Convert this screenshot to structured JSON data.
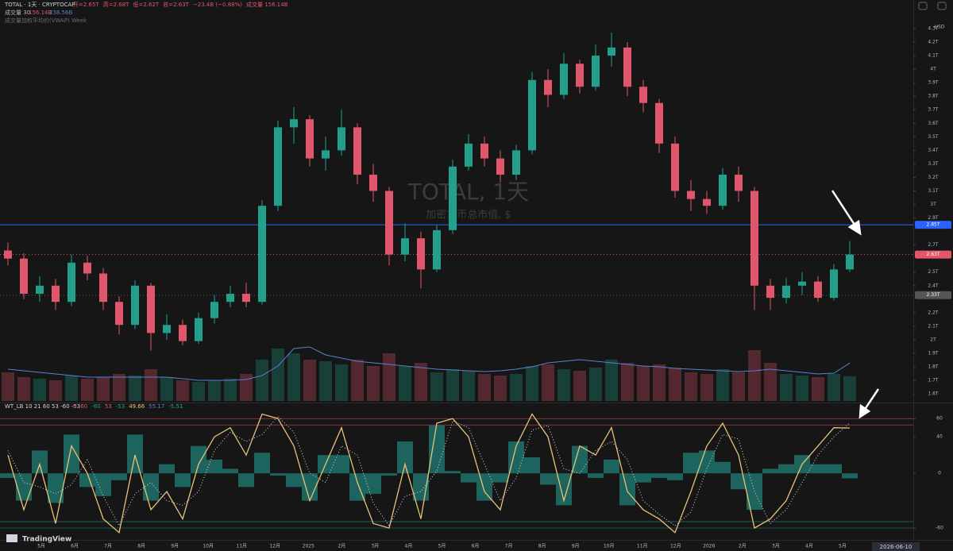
{
  "header": {
    "symbol": "TOTAL · 1天 · CRYPTOCAP",
    "ohlc": [
      "开=2.65T",
      "高=2.68T",
      "低=2.62T",
      "收=2.63T",
      "−23.4B (−0.88%)",
      "成交量 156.14B"
    ],
    "volume_legend": [
      "成交量 30",
      "156.14B",
      "238.56B"
    ],
    "vwap": "成交量加权平均价(VWAP) Week",
    "currency": "USD"
  },
  "watermark": {
    "title": "TOTAL, 1天",
    "subtitle": "加密货币总市值, $"
  },
  "time_axis": {
    "labels": [
      "5月",
      "6月",
      "7月",
      "8月",
      "9月",
      "10月",
      "11月",
      "12月",
      "2025",
      "2月",
      "3月",
      "4月",
      "5月",
      "6月",
      "7月",
      "8月",
      "9月",
      "10月",
      "11月",
      "12月",
      "2026",
      "2月",
      "3月",
      "4月",
      "5月"
    ],
    "cursor_date": "2026-06-10"
  },
  "brand": "TradingView",
  "chart_data": [
    {
      "type": "candlestick",
      "up_color": "#22a08b",
      "down_color": "#e0566a",
      "open": [
        2.66,
        2.6,
        2.34,
        2.4,
        2.28,
        2.57,
        2.49,
        2.28,
        2.11,
        2.4,
        2.05,
        2.11,
        1.99,
        2.16,
        2.28,
        2.34,
        2.28,
        2.99,
        3.57,
        3.63,
        3.34,
        3.4,
        3.57,
        3.22,
        3.1,
        2.63,
        2.75,
        2.52,
        2.81,
        3.28,
        3.45,
        3.34,
        3.22,
        3.4,
        3.92,
        3.81,
        4.04,
        3.87,
        4.1,
        4.16,
        3.87,
        3.75,
        3.45,
        3.1,
        3.04,
        2.99,
        3.22,
        3.1,
        2.4,
        2.31,
        2.4,
        2.43,
        2.31,
        2.52
      ],
      "high": [
        2.72,
        2.64,
        2.47,
        2.45,
        2.63,
        2.62,
        2.53,
        2.32,
        2.44,
        2.42,
        2.19,
        2.15,
        2.2,
        2.33,
        2.4,
        2.42,
        3.03,
        3.62,
        3.72,
        3.66,
        3.5,
        3.7,
        3.6,
        3.3,
        3.13,
        2.86,
        2.8,
        2.85,
        3.33,
        3.52,
        3.5,
        3.4,
        3.44,
        3.98,
        4.0,
        4.12,
        4.07,
        4.18,
        4.27,
        4.2,
        3.92,
        3.78,
        3.5,
        3.18,
        3.1,
        3.27,
        3.28,
        3.13,
        2.45,
        2.46,
        2.5,
        2.47,
        2.56,
        2.73
      ],
      "low": [
        2.55,
        2.3,
        2.28,
        2.22,
        2.25,
        2.44,
        2.22,
        2.04,
        2.08,
        1.92,
        2.0,
        1.96,
        1.97,
        2.12,
        2.24,
        2.24,
        2.26,
        2.95,
        3.45,
        3.28,
        3.25,
        3.36,
        3.15,
        3.02,
        2.55,
        2.58,
        2.38,
        2.5,
        2.78,
        3.25,
        3.28,
        3.16,
        3.18,
        3.37,
        3.72,
        3.78,
        3.82,
        3.84,
        4.02,
        3.8,
        3.68,
        3.38,
        3.05,
        2.95,
        2.93,
        2.96,
        3.02,
        2.22,
        2.22,
        2.27,
        2.33,
        2.28,
        2.29,
        2.5
      ],
      "close": [
        2.6,
        2.34,
        2.4,
        2.28,
        2.57,
        2.49,
        2.28,
        2.11,
        2.4,
        2.05,
        2.11,
        1.99,
        2.16,
        2.28,
        2.34,
        2.28,
        2.99,
        3.57,
        3.63,
        3.34,
        3.4,
        3.57,
        3.22,
        3.1,
        2.63,
        2.75,
        2.52,
        2.81,
        3.28,
        3.45,
        3.34,
        3.22,
        3.4,
        3.92,
        3.81,
        4.04,
        3.87,
        4.1,
        4.16,
        3.87,
        3.75,
        3.45,
        3.1,
        3.04,
        2.99,
        3.22,
        3.1,
        2.4,
        2.31,
        2.4,
        2.43,
        2.31,
        2.52,
        2.63
      ],
      "volume": [
        180,
        150,
        140,
        130,
        160,
        140,
        150,
        170,
        160,
        200,
        150,
        130,
        120,
        130,
        140,
        170,
        260,
        330,
        300,
        260,
        250,
        230,
        260,
        220,
        300,
        220,
        240,
        180,
        200,
        190,
        170,
        160,
        170,
        220,
        230,
        200,
        190,
        210,
        260,
        240,
        220,
        230,
        210,
        180,
        170,
        200,
        180,
        320,
        240,
        170,
        160,
        150,
        170,
        156.14
      ],
      "volume_ma": {
        "color": "#5b7fd1",
        "values": [
          200,
          190,
          180,
          170,
          160,
          150,
          150,
          150,
          150,
          150,
          150,
          140,
          130,
          130,
          130,
          135,
          160,
          220,
          330,
          340,
          290,
          270,
          250,
          240,
          230,
          220,
          210,
          200,
          195,
          190,
          185,
          190,
          200,
          215,
          240,
          250,
          260,
          250,
          240,
          230,
          220,
          215,
          205,
          200,
          195,
          190,
          185,
          190,
          200,
          190,
          180,
          170,
          175,
          238.56
        ]
      },
      "ylim": [
        1.548,
        4.511
      ],
      "yticks": [
        {
          "value": 4.3,
          "label": "4.3T"
        },
        {
          "value": 4.2,
          "label": "4.2T"
        },
        {
          "value": 4.1,
          "label": "4.1T"
        },
        {
          "value": 4.0,
          "label": "4T"
        },
        {
          "value": 3.9,
          "label": "3.9T"
        },
        {
          "value": 3.8,
          "label": "3.8T"
        },
        {
          "value": 3.7,
          "label": "3.7T"
        },
        {
          "value": 3.6,
          "label": "3.6T"
        },
        {
          "value": 3.5,
          "label": "3.5T"
        },
        {
          "value": 3.4,
          "label": "3.4T"
        },
        {
          "value": 3.3,
          "label": "3.3T"
        },
        {
          "value": 3.2,
          "label": "3.2T"
        },
        {
          "value": 3.1,
          "label": "3.1T"
        },
        {
          "value": 3.0,
          "label": "3T"
        },
        {
          "value": 2.9,
          "label": "2.9T"
        },
        {
          "value": 2.7,
          "label": "2.7T"
        },
        {
          "value": 2.5,
          "label": "2.5T"
        },
        {
          "value": 2.4,
          "label": "2.4T"
        },
        {
          "value": 2.2,
          "label": "2.2T"
        },
        {
          "value": 2.1,
          "label": "2.1T"
        },
        {
          "value": 2.0,
          "label": "2T"
        },
        {
          "value": 1.9,
          "label": "1.9T"
        },
        {
          "value": 1.8,
          "label": "1.8T"
        },
        {
          "value": 1.7,
          "label": "1.7T"
        },
        {
          "value": 1.6,
          "label": "1.6T"
        }
      ],
      "hlines": [
        {
          "value": 2.85,
          "label": "2.85T",
          "color": "#2962ff",
          "dashed": false
        },
        {
          "value": 2.63,
          "label": "2.63T",
          "color": "#e0566a",
          "dashed": true
        },
        {
          "value": 2.33,
          "label": "2.33T",
          "color": "#555555",
          "dashed": true
        }
      ],
      "grid": false
    },
    {
      "type": "line",
      "name": "WT_LB 10 21 60 53 -60 -53",
      "legend_values": [
        {
          "label": "0",
          "color": "#e0566a"
        },
        {
          "label": "60",
          "color": "#e0566a"
        },
        {
          "label": "-60",
          "color": "#22a08b"
        },
        {
          "label": "53",
          "color": "#e0566a"
        },
        {
          "label": "-53",
          "color": "#22a08b"
        },
        {
          "label": "49.66",
          "color": "#e8c27a"
        },
        {
          "label": "55.17",
          "color": "#5b7fd1"
        },
        {
          "label": "-5.51",
          "color": "#26a69a"
        }
      ],
      "series": [
        {
          "kind": "histogram",
          "color": "#26a69a",
          "values": [
            -5,
            -30,
            25,
            -32.5,
            42.5,
            -15,
            -25,
            -7.5,
            42.5,
            -30,
            10,
            -15,
            30,
            15,
            5,
            -15,
            22.5,
            -2.5,
            -15,
            -30,
            20,
            20,
            -30,
            -22.5,
            -2.5,
            35,
            -30,
            52.5,
            2.5,
            -10,
            -30,
            -10,
            35,
            17.5,
            -12.5,
            -35,
            30,
            -5,
            15,
            -35,
            -10,
            -5,
            -7.5,
            22.5,
            25,
            12.5,
            -17.5,
            -40,
            5,
            10,
            20,
            10,
            10,
            -5.51
          ]
        },
        {
          "kind": "line",
          "color": "#e8c27a",
          "values": [
            20,
            -40,
            10,
            -55,
            30,
            0,
            -50,
            -65,
            20,
            -40,
            -20,
            -50,
            10,
            40,
            50,
            20,
            65,
            60,
            30,
            -30,
            10,
            50,
            -10,
            -55,
            -60,
            10,
            -50,
            55,
            60,
            40,
            -20,
            -40,
            30,
            65,
            40,
            -30,
            30,
            20,
            50,
            -20,
            -40,
            -50,
            -65,
            -20,
            30,
            55,
            20,
            -60,
            -50,
            -30,
            10,
            30,
            50,
            49.66
          ]
        },
        {
          "kind": "dotted",
          "color": "#d9d9d9",
          "values": [
            25,
            -10,
            -15,
            -22.5,
            -12.5,
            15,
            -25,
            -57.5,
            -22.5,
            -10,
            -30,
            -35,
            -20,
            25,
            45,
            35,
            42.5,
            62.5,
            45,
            0,
            -10,
            30,
            20,
            -32.5,
            -57.5,
            -25,
            -20,
            2.5,
            57.5,
            50,
            10,
            -30,
            -5,
            47.5,
            52.5,
            5,
            0,
            25,
            35,
            15,
            -30,
            -45,
            -57.5,
            -42.5,
            5,
            42.5,
            37.5,
            -20,
            -55,
            -40,
            -10,
            20,
            40,
            55.17
          ]
        }
      ],
      "levels": [
        {
          "value": 60,
          "color": "#e0566a"
        },
        {
          "value": 53,
          "color": "#e0566a"
        },
        {
          "value": -53,
          "color": "#22a08b"
        },
        {
          "value": -60,
          "color": "#22a08b"
        }
      ],
      "ylim": [
        -73,
        75
      ],
      "yticks": [
        60,
        40,
        0,
        -60
      ],
      "grid": false
    }
  ]
}
